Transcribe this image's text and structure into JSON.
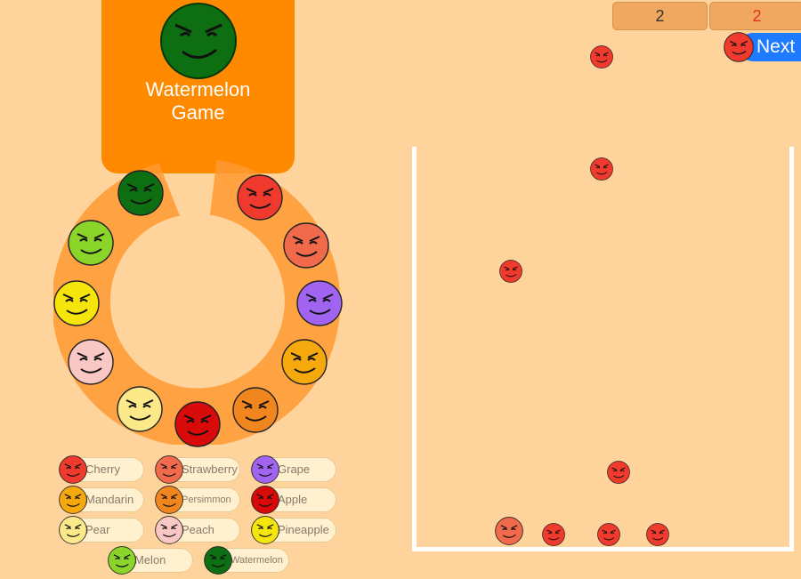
{
  "game": {
    "title": "Watermelon\nGame"
  },
  "scores": {
    "current": "2",
    "best": "2"
  },
  "next_button": {
    "label": "Next"
  },
  "colors": {
    "background": "#FFD49C",
    "banner": "#FF8A00",
    "ring": "#FF9933",
    "next_button": "#1E7BFF",
    "container_wall": "#FFFFFF"
  },
  "fruits": [
    {
      "name": "Cherry",
      "color": "#F03A2E"
    },
    {
      "name": "Strawberry",
      "color": "#F26A4C"
    },
    {
      "name": "Grape",
      "color": "#A064F0"
    },
    {
      "name": "Mandarin",
      "color": "#F6A90D"
    },
    {
      "name": "Persimmon",
      "color": "#F2861E"
    },
    {
      "name": "Apple",
      "color": "#D80A0A"
    },
    {
      "name": "Pear",
      "color": "#FCE98A"
    },
    {
      "name": "Peach",
      "color": "#F9C7C4"
    },
    {
      "name": "Pineapple",
      "color": "#F5E50A"
    },
    {
      "name": "Melon",
      "color": "#8BD42A"
    },
    {
      "name": "Watermelon",
      "color": "#0E6E12"
    }
  ]
}
